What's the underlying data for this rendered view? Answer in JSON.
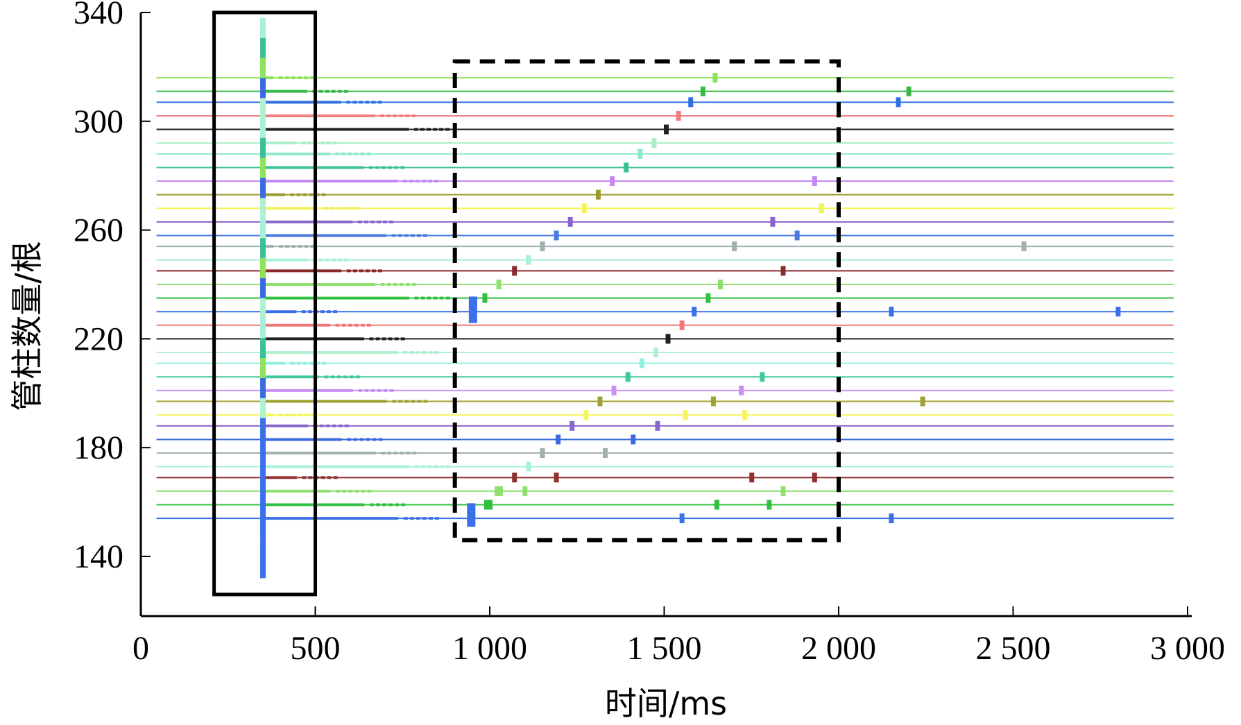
{
  "chart_data": {
    "type": "scatter",
    "title": "",
    "xlabel": "时间/ms",
    "ylabel": "管柱数量/根",
    "xlim": [
      0,
      3000
    ],
    "ylim": [
      120,
      340
    ],
    "x_ticks": [
      0,
      500,
      1000,
      1500,
      2000,
      2500,
      3000
    ],
    "x_tick_labels": [
      "0",
      "500",
      "1 000",
      "1 500",
      "2 000",
      "2 500",
      "3 000"
    ],
    "y_ticks": [
      140,
      180,
      220,
      260,
      300,
      340
    ],
    "y_tick_labels": [
      "140",
      "180",
      "220",
      "260",
      "300",
      "340"
    ],
    "grid": false,
    "legend": "none",
    "trace_x_range": [
      45,
      2960
    ],
    "series": [
      {
        "y": 316,
        "color": "#8fe35a"
      },
      {
        "y": 311,
        "color": "#39b84a"
      },
      {
        "y": 307,
        "color": "#2f6fe0"
      },
      {
        "y": 302,
        "color": "#f08080"
      },
      {
        "y": 297,
        "color": "#202020"
      },
      {
        "y": 292,
        "color": "#a8f0c8"
      },
      {
        "y": 288,
        "color": "#8ee8d0"
      },
      {
        "y": 283,
        "color": "#3cc09a"
      },
      {
        "y": 278,
        "color": "#c389f5"
      },
      {
        "y": 273,
        "color": "#9a9a2a"
      },
      {
        "y": 268,
        "color": "#f2f25a"
      },
      {
        "y": 263,
        "color": "#8a66cc"
      },
      {
        "y": 258,
        "color": "#4a7ae0"
      },
      {
        "y": 254,
        "color": "#a0b0b0"
      },
      {
        "y": 249,
        "color": "#a8f0d8"
      },
      {
        "y": 245,
        "color": "#8b2a2a"
      },
      {
        "y": 240,
        "color": "#90e070"
      },
      {
        "y": 235,
        "color": "#33c040"
      },
      {
        "y": 230,
        "color": "#3a70e8"
      },
      {
        "y": 225,
        "color": "#f07878"
      },
      {
        "y": 220,
        "color": "#202020"
      },
      {
        "y": 215,
        "color": "#b0f0d0"
      },
      {
        "y": 211,
        "color": "#90f0e0"
      },
      {
        "y": 206,
        "color": "#40c8a0"
      },
      {
        "y": 201,
        "color": "#c890f5"
      },
      {
        "y": 197,
        "color": "#a0a030"
      },
      {
        "y": 192,
        "color": "#f5f560"
      },
      {
        "y": 188,
        "color": "#8866cc"
      },
      {
        "y": 183,
        "color": "#3a6ae0"
      },
      {
        "y": 178,
        "color": "#a0b0b0"
      },
      {
        "y": 173,
        "color": "#a8f0d8"
      },
      {
        "y": 169,
        "color": "#903030"
      },
      {
        "y": 164,
        "color": "#90e070"
      },
      {
        "y": 159,
        "color": "#33c040"
      },
      {
        "y": 154,
        "color": "#3a70e8"
      }
    ],
    "initial_burst": {
      "x": 350,
      "y_range": [
        132,
        338
      ]
    },
    "diagonal_markers_lower": [
      [
        945,
        154
      ],
      [
        990,
        159
      ],
      [
        1030,
        164
      ],
      [
        1070,
        169
      ],
      [
        1110,
        173
      ],
      [
        1150,
        178
      ],
      [
        1195,
        183
      ],
      [
        1235,
        188
      ],
      [
        1275,
        192
      ],
      [
        1315,
        197
      ],
      [
        1355,
        201
      ],
      [
        1395,
        206
      ],
      [
        1435,
        211
      ],
      [
        1475,
        215
      ],
      [
        1510,
        220
      ],
      [
        1550,
        225
      ],
      [
        1585,
        230
      ],
      [
        1625,
        235
      ],
      [
        1660,
        240
      ]
    ],
    "diagonal_markers_upper": [
      [
        950,
        230
      ],
      [
        985,
        235
      ],
      [
        1025,
        240
      ],
      [
        1070,
        245
      ],
      [
        1110,
        249
      ],
      [
        1150,
        254
      ],
      [
        1190,
        258
      ],
      [
        1230,
        263
      ],
      [
        1270,
        268
      ],
      [
        1310,
        273
      ],
      [
        1350,
        278
      ],
      [
        1390,
        283
      ],
      [
        1430,
        288
      ],
      [
        1470,
        292
      ],
      [
        1505,
        297
      ],
      [
        1540,
        302
      ],
      [
        1575,
        307
      ],
      [
        1610,
        311
      ],
      [
        1645,
        316
      ]
    ],
    "scattered_markers": [
      [
        1000,
        159
      ],
      [
        1020,
        164
      ],
      [
        1100,
        164
      ],
      [
        1190,
        169
      ],
      [
        1330,
        178
      ],
      [
        1410,
        183
      ],
      [
        1480,
        188
      ],
      [
        1560,
        192
      ],
      [
        1640,
        197
      ],
      [
        1720,
        201
      ],
      [
        1780,
        206
      ],
      [
        1840,
        245
      ],
      [
        1930,
        278
      ],
      [
        1930,
        169
      ],
      [
        1750,
        169
      ],
      [
        1800,
        159
      ],
      [
        1730,
        192
      ],
      [
        1840,
        164
      ],
      [
        1650,
        159
      ],
      [
        2170,
        307
      ],
      [
        2200,
        311
      ],
      [
        2150,
        230
      ],
      [
        2800,
        230
      ],
      [
        2150,
        154
      ],
      [
        1550,
        154
      ],
      [
        2240,
        197
      ],
      [
        2530,
        254
      ],
      [
        1700,
        254
      ],
      [
        1880,
        258
      ],
      [
        1950,
        268
      ],
      [
        1810,
        263
      ]
    ],
    "annotations": [
      {
        "shape": "rect",
        "style": "solid",
        "x_range": [
          210,
          500
        ],
        "y_range": [
          126,
          340
        ]
      },
      {
        "shape": "rect",
        "style": "dashed",
        "x_range": [
          900,
          2000
        ],
        "y_range": [
          146,
          322
        ]
      }
    ]
  }
}
